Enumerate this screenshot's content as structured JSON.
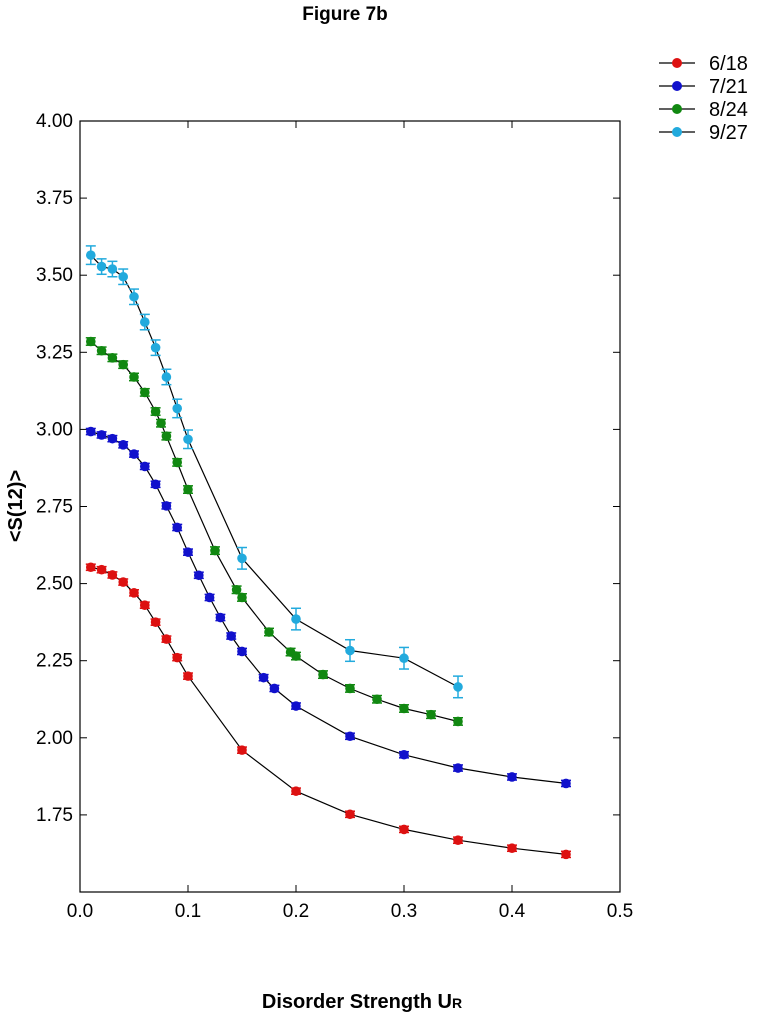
{
  "chart_data": {
    "type": "scatter",
    "title": "Figure 7b",
    "xlabel": "Disorder Strength U",
    "xlabel_subscript": "R",
    "ylabel": "<S(12)>",
    "xlim": [
      0.0,
      0.5
    ],
    "ylim": [
      1.5,
      4.0
    ],
    "x_ticks": [
      0.0,
      0.1,
      0.2,
      0.3,
      0.4,
      0.5
    ],
    "x_tick_labels": [
      "0.0",
      "0.1",
      "0.2",
      "0.3",
      "0.4",
      "0.5"
    ],
    "y_ticks": [
      1.75,
      2.0,
      2.25,
      2.5,
      2.75,
      3.0,
      3.25,
      3.5,
      3.75,
      4.0
    ],
    "y_tick_labels": [
      "1.75",
      "2.00",
      "2.25",
      "2.50",
      "2.75",
      "3.00",
      "3.25",
      "3.50",
      "3.75",
      "4.00"
    ],
    "grid": false,
    "legend_position": "top-right, outside plot",
    "series": [
      {
        "name": "6/18",
        "color": "#dd1111",
        "x": [
          0.01,
          0.02,
          0.03,
          0.04,
          0.05,
          0.06,
          0.07,
          0.08,
          0.09,
          0.1,
          0.15,
          0.2,
          0.25,
          0.3,
          0.35,
          0.4,
          0.45
        ],
        "y": [
          2.553,
          2.545,
          2.528,
          2.505,
          2.47,
          2.43,
          2.375,
          2.32,
          2.26,
          2.2,
          1.96,
          1.827,
          1.752,
          1.703,
          1.668,
          1.642,
          1.622
        ],
        "err": [
          0.01,
          0.01,
          0.01,
          0.01,
          0.01,
          0.01,
          0.01,
          0.01,
          0.01,
          0.01,
          0.01,
          0.01,
          0.01,
          0.01,
          0.01,
          0.01,
          0.01
        ]
      },
      {
        "name": "7/21",
        "color": "#1111cc",
        "x": [
          0.01,
          0.02,
          0.03,
          0.04,
          0.05,
          0.06,
          0.07,
          0.08,
          0.09,
          0.1,
          0.11,
          0.12,
          0.13,
          0.14,
          0.15,
          0.17,
          0.18,
          0.2,
          0.25,
          0.3,
          0.35,
          0.4,
          0.45
        ],
        "y": [
          2.993,
          2.982,
          2.97,
          2.95,
          2.92,
          2.88,
          2.822,
          2.752,
          2.682,
          2.602,
          2.527,
          2.455,
          2.39,
          2.33,
          2.28,
          2.195,
          2.16,
          2.103,
          2.005,
          1.945,
          1.902,
          1.873,
          1.852
        ],
        "err": [
          0.01,
          0.01,
          0.01,
          0.01,
          0.01,
          0.01,
          0.01,
          0.01,
          0.01,
          0.01,
          0.01,
          0.01,
          0.01,
          0.01,
          0.01,
          0.01,
          0.01,
          0.01,
          0.01,
          0.01,
          0.01,
          0.01,
          0.01
        ]
      },
      {
        "name": "8/24",
        "color": "#118811",
        "x": [
          0.01,
          0.02,
          0.03,
          0.04,
          0.05,
          0.06,
          0.07,
          0.075,
          0.08,
          0.09,
          0.1,
          0.125,
          0.145,
          0.15,
          0.175,
          0.195,
          0.2,
          0.225,
          0.25,
          0.275,
          0.3,
          0.325,
          0.35
        ],
        "y": [
          3.285,
          3.255,
          3.232,
          3.21,
          3.17,
          3.12,
          3.058,
          3.02,
          2.978,
          2.893,
          2.805,
          2.607,
          2.48,
          2.455,
          2.343,
          2.278,
          2.265,
          2.205,
          2.16,
          2.125,
          2.095,
          2.075,
          2.053
        ],
        "err": [
          0.012,
          0.012,
          0.012,
          0.012,
          0.012,
          0.012,
          0.012,
          0.012,
          0.012,
          0.012,
          0.012,
          0.012,
          0.012,
          0.012,
          0.012,
          0.012,
          0.012,
          0.012,
          0.012,
          0.012,
          0.012,
          0.012,
          0.012
        ]
      },
      {
        "name": "9/27",
        "color": "#22aadd",
        "x": [
          0.01,
          0.02,
          0.03,
          0.04,
          0.05,
          0.06,
          0.07,
          0.08,
          0.09,
          0.1,
          0.15,
          0.2,
          0.25,
          0.3,
          0.35
        ],
        "y": [
          3.565,
          3.528,
          3.52,
          3.495,
          3.43,
          3.348,
          3.265,
          3.17,
          3.068,
          2.968,
          2.582,
          2.385,
          2.283,
          2.258,
          2.165
        ],
        "err": [
          0.03,
          0.025,
          0.025,
          0.025,
          0.025,
          0.025,
          0.025,
          0.025,
          0.03,
          0.03,
          0.035,
          0.035,
          0.035,
          0.035,
          0.035
        ]
      }
    ]
  }
}
